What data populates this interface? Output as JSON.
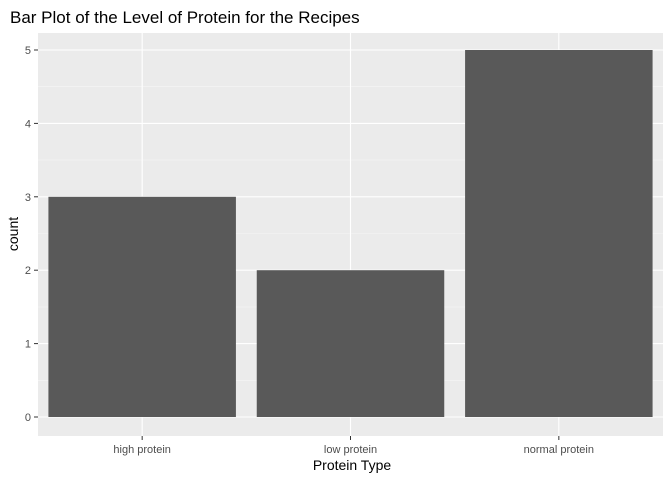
{
  "chart_data": {
    "type": "bar",
    "title": "Bar Plot of the Level of Protein for the Recipes",
    "xlabel": "Protein Type",
    "ylabel": "count",
    "categories": [
      "high protein",
      "low protein",
      "normal protein"
    ],
    "values": [
      3,
      2,
      5
    ],
    "ylim": [
      0,
      5
    ],
    "yticks": [
      "0",
      "1",
      "2",
      "3",
      "4",
      "5"
    ],
    "grid": true,
    "legend": "none",
    "colors": {
      "bar": "#595959",
      "panel": "#ebebeb",
      "grid_major": "#ffffff",
      "grid_minor": "#f5f5f5",
      "tick_text": "#4d4d4d"
    }
  }
}
